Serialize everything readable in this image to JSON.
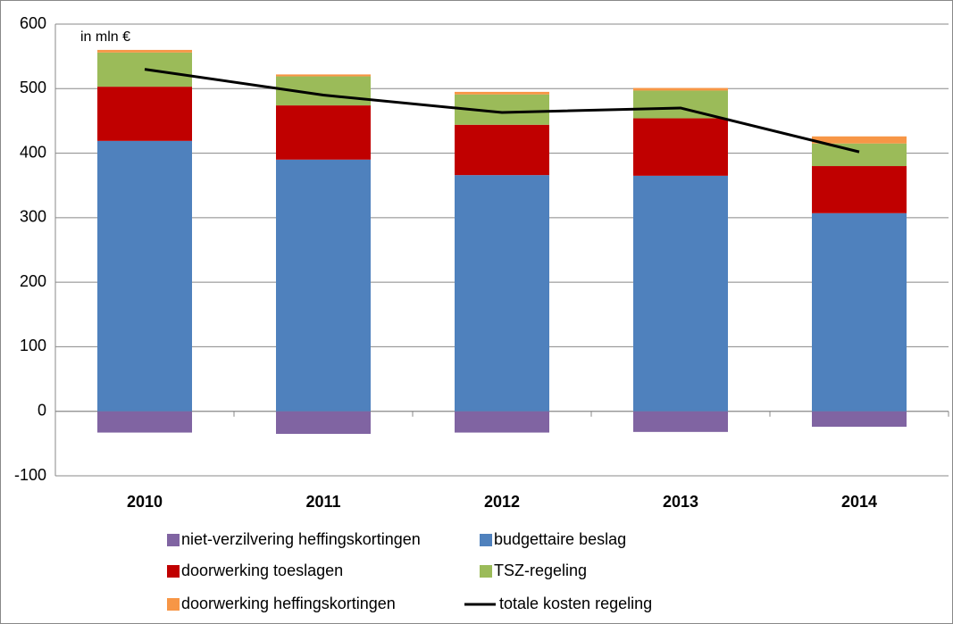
{
  "chart_data": {
    "type": "stacked-bar-line",
    "annotation": "in mln €",
    "categories": [
      "2010",
      "2011",
      "2012",
      "2013",
      "2014"
    ],
    "series": [
      {
        "name": "niet-verzilvering heffingskortingen",
        "type": "bar",
        "color": "#8064a2",
        "values": [
          -33,
          -35,
          -33,
          -32,
          -24
        ]
      },
      {
        "name": "budgettaire beslag",
        "type": "bar",
        "color": "#4f81bd",
        "values": [
          419,
          390,
          366,
          365,
          307
        ]
      },
      {
        "name": "doorwerking toeslagen",
        "type": "bar",
        "color": "#c00000",
        "values": [
          84,
          84,
          78,
          89,
          73
        ]
      },
      {
        "name": "TSZ-regeling",
        "type": "bar",
        "color": "#9bbb59",
        "values": [
          53,
          45,
          47,
          43,
          35
        ]
      },
      {
        "name": "doorwerking heffingskortingen",
        "type": "bar",
        "color": "#f79646",
        "values": [
          4,
          3,
          4,
          4,
          11
        ]
      },
      {
        "name": "totale kosten regeling",
        "type": "line",
        "color": "#000000",
        "values": [
          530,
          490,
          463,
          470,
          402
        ]
      }
    ],
    "ylim": [
      -100,
      600
    ],
    "yticks": [
      -100,
      0,
      100,
      200,
      300,
      400,
      500,
      600
    ],
    "grid": true
  }
}
